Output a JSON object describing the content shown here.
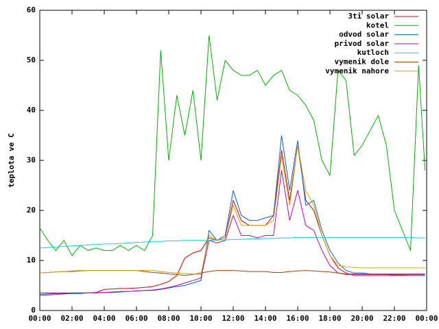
{
  "chart_data": {
    "type": "line",
    "y_label": "teplota ve C",
    "x": [
      0,
      0.5,
      1,
      1.5,
      2,
      2.5,
      3,
      3.5,
      4,
      4.5,
      5,
      5.5,
      6,
      6.5,
      7,
      7.5,
      8,
      8.5,
      9,
      9.5,
      10,
      10.5,
      11,
      11.5,
      12,
      12.5,
      13,
      13.5,
      14,
      14.5,
      15,
      15.5,
      16,
      16.5,
      17,
      17.5,
      18,
      18.5,
      19,
      19.5,
      20,
      20.5,
      21,
      21.5,
      22,
      22.5,
      23,
      23.5,
      23.9
    ],
    "xlim": [
      0,
      24
    ],
    "xticks": [
      {
        "value": 0,
        "label": "00:00"
      },
      {
        "value": 2,
        "label": "02:00"
      },
      {
        "value": 4,
        "label": "04:00"
      },
      {
        "value": 6,
        "label": "06:00"
      },
      {
        "value": 8,
        "label": "08:00"
      },
      {
        "value": 10,
        "label": "10:00"
      },
      {
        "value": 12,
        "label": "12:00"
      },
      {
        "value": 14,
        "label": "14:00"
      },
      {
        "value": 16,
        "label": "16:00"
      },
      {
        "value": 18,
        "label": "18:00"
      },
      {
        "value": 20,
        "label": "20:00"
      },
      {
        "value": 22,
        "label": "22:00"
      },
      {
        "value": 24,
        "label": "00:00"
      }
    ],
    "ylim": [
      0,
      60
    ],
    "yticks": [
      0,
      10,
      20,
      30,
      40,
      50,
      60
    ],
    "legend": "top-right",
    "series": [
      {
        "name": "3ti solar",
        "color": "#e00000",
        "values": [
          3.5,
          3.5,
          3.5,
          3.5,
          3.5,
          3.5,
          3.5,
          3.6,
          4.2,
          4.3,
          4.4,
          4.4,
          4.5,
          4.6,
          4.8,
          5.2,
          5.8,
          7,
          10.5,
          11.5,
          12,
          14.5,
          14,
          14.5,
          22,
          18,
          17,
          17,
          17,
          19,
          32,
          22,
          33,
          22,
          20,
          15,
          11,
          8.5,
          7.5,
          7,
          7,
          7,
          7,
          7,
          7,
          7,
          7,
          7,
          7
        ]
      },
      {
        "name": "kotel",
        "color": "#00b000",
        "values": [
          16.5,
          14,
          12,
          14,
          11,
          13,
          12,
          12.5,
          12,
          12,
          13,
          12,
          13,
          12,
          15,
          52,
          30,
          43,
          35,
          44,
          30,
          55,
          42,
          50,
          48,
          47,
          47,
          48,
          45,
          47,
          48,
          44,
          43,
          41,
          38,
          30,
          27,
          48,
          46,
          31,
          33,
          36,
          39,
          33,
          20,
          16,
          12,
          49,
          28
        ]
      },
      {
        "name": "odvod solar",
        "color": "#0060e0",
        "values": [
          3,
          3.1,
          3.2,
          3.3,
          3.4,
          3.4,
          3.5,
          3.5,
          3.6,
          3.6,
          3.7,
          3.8,
          3.9,
          4,
          4,
          4.2,
          4.5,
          4.8,
          5,
          5.5,
          6,
          16,
          14,
          15,
          24,
          19,
          18,
          18,
          18.5,
          19,
          35,
          24,
          34,
          21,
          22,
          16,
          12,
          9.5,
          8,
          7.5,
          7.5,
          7.3,
          7.2,
          7.2,
          7.1,
          7.1,
          7,
          7,
          7
        ]
      },
      {
        "name": "privod solar",
        "color": "#c000c0",
        "values": [
          3.2,
          3.3,
          3.4,
          3.4,
          3.5,
          3.5,
          3.5,
          3.6,
          3.6,
          3.7,
          3.8,
          3.8,
          3.9,
          4,
          4.1,
          4.3,
          4.6,
          5,
          5.5,
          6,
          6.5,
          14,
          13.5,
          14,
          19,
          15,
          15,
          14.5,
          15,
          15,
          28,
          18,
          24,
          17,
          16,
          12,
          9,
          7.5,
          7.2,
          7.2,
          7.2,
          7.2,
          7.2,
          7.2,
          7.2,
          7.2,
          7.2,
          7.2,
          7.2
        ]
      },
      {
        "name": "kutloch",
        "color": "#00d8d8",
        "values": [
          12.5,
          12.6,
          12.7,
          12.8,
          12.9,
          13,
          13.1,
          13.2,
          13.3,
          13.3,
          13.4,
          13.5,
          13.6,
          13.7,
          13.8,
          13.8,
          13.9,
          13.9,
          14,
          14,
          14,
          14,
          14.1,
          14.1,
          14.2,
          14.2,
          14.3,
          14.3,
          14.4,
          14.4,
          14.5,
          14.5,
          14.6,
          14.6,
          14.6,
          14.6,
          14.6,
          14.6,
          14.6,
          14.6,
          14.6,
          14.6,
          14.6,
          14.6,
          14.6,
          14.6,
          14.6,
          14.5,
          14.5
        ]
      },
      {
        "name": "vymenik dole",
        "color": "#a04000",
        "values": [
          7.5,
          7.6,
          7.7,
          7.8,
          7.8,
          7.9,
          8,
          8,
          8,
          8,
          8,
          8,
          8,
          7.8,
          7.6,
          7.5,
          7.3,
          7.2,
          7,
          7.2,
          7.5,
          7.8,
          8,
          8,
          8,
          7.9,
          7.8,
          7.8,
          7.8,
          7.6,
          7.6,
          7.8,
          7.9,
          8,
          7.9,
          7.8,
          7.7,
          7.5,
          7.3,
          7.3,
          7.3,
          7.3,
          7.3,
          7.3,
          7.3,
          7.3,
          7.3,
          7.3,
          7.3
        ]
      },
      {
        "name": "vymenik nahore",
        "color": "#c8a800",
        "values": [
          7.5,
          7.6,
          7.7,
          7.8,
          7.9,
          8,
          8,
          8,
          8,
          8,
          8,
          8,
          8,
          8,
          8,
          7.8,
          7.6,
          7.5,
          7.4,
          7.3,
          7.2,
          15,
          14,
          14.5,
          21,
          17,
          17,
          17,
          17,
          18,
          31,
          21,
          33,
          24,
          21,
          15,
          11,
          9,
          8.7,
          8.6,
          8.5,
          8.5,
          8.5,
          8.5,
          8.5,
          8.5,
          8.5,
          8.5,
          8.5
        ]
      }
    ]
  }
}
